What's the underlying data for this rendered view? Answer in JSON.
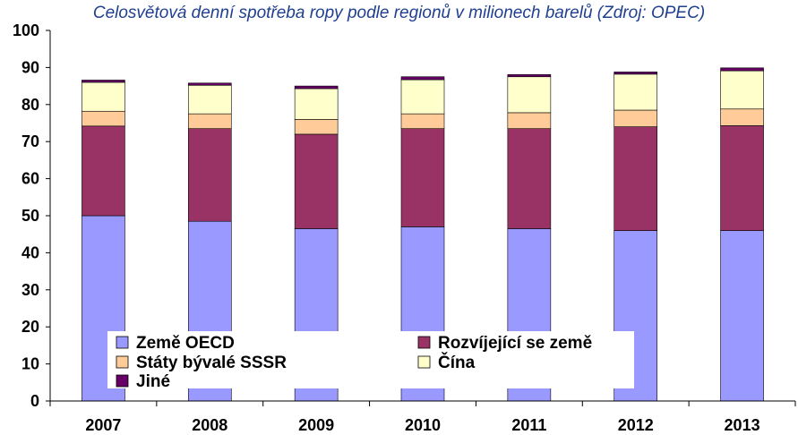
{
  "chart_data": {
    "type": "bar",
    "stacked": true,
    "title": "Celosvětová denní spotřeba ropy podle regionů v milionech barelů (Zdroj: OPEC)",
    "categories": [
      "2007",
      "2008",
      "2009",
      "2010",
      "2011",
      "2012",
      "2013"
    ],
    "series": [
      {
        "name": "Země OECD",
        "color": "#9999ff",
        "values": [
          50.0,
          48.5,
          46.5,
          47.0,
          46.5,
          46.0,
          46.0
        ]
      },
      {
        "name": "Rozvíjející se země",
        "color": "#993366",
        "values": [
          24.2,
          25.0,
          25.5,
          26.5,
          27.0,
          28.0,
          28.3
        ]
      },
      {
        "name": "Státy bývalé SSSR",
        "color": "#ffcc99",
        "values": [
          4.0,
          4.0,
          4.0,
          4.0,
          4.3,
          4.5,
          4.5
        ]
      },
      {
        "name": "Čína",
        "color": "#ffffcc",
        "values": [
          7.8,
          7.7,
          8.3,
          9.2,
          9.7,
          9.7,
          10.3
        ]
      },
      {
        "name": "Jiné",
        "color": "#660066",
        "values": [
          0.6,
          0.6,
          0.7,
          0.8,
          0.6,
          0.6,
          0.8
        ]
      }
    ],
    "ylim": [
      0,
      100
    ],
    "yticks": [
      0,
      10,
      20,
      30,
      40,
      50,
      60,
      70,
      80,
      90,
      100
    ],
    "grid": false,
    "legend": {
      "placement": "bottom-center",
      "rows": [
        [
          "Země OECD",
          "Rozvíjející se země"
        ],
        [
          "Státy bývalé SSSR",
          "Čína"
        ],
        [
          "Jiné"
        ]
      ]
    }
  }
}
